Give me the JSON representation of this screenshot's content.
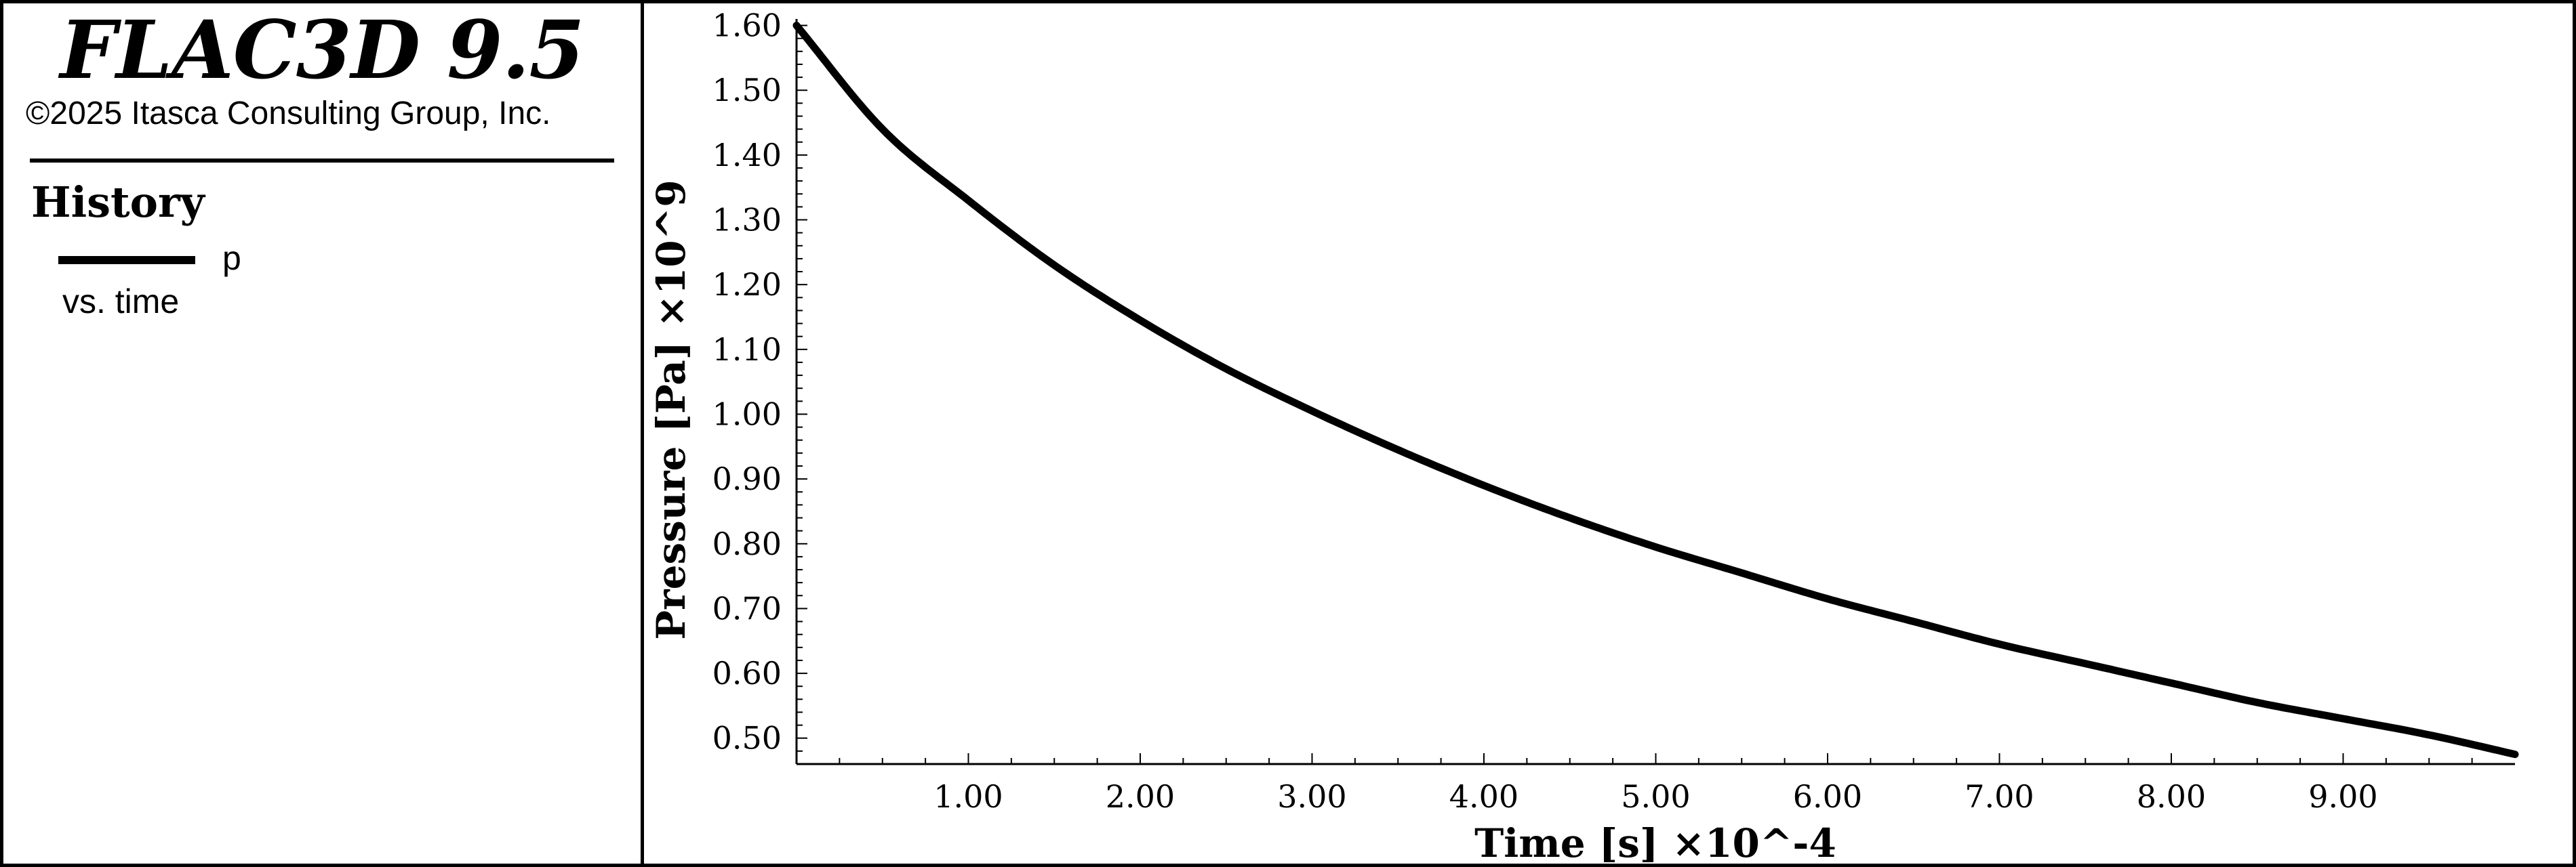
{
  "header": {
    "app_title": "FLAC3D 9.5",
    "copyright": "©2025 Itasca Consulting Group, Inc."
  },
  "legend": {
    "heading": "History",
    "series_label": "p",
    "sub_label": "vs. time"
  },
  "chart_data": {
    "type": "line",
    "title": "",
    "xlabel": "Time [s] ×10^-4",
    "ylabel": "Pressure [Pa] ×10^9",
    "xlim": [
      0.0,
      10.0
    ],
    "ylim": [
      0.46,
      1.61
    ],
    "x_ticks": [
      "1.00",
      "2.00",
      "3.00",
      "4.00",
      "5.00",
      "6.00",
      "7.00",
      "8.00",
      "9.00"
    ],
    "y_ticks": [
      "1.60",
      "1.50",
      "1.40",
      "1.30",
      "1.20",
      "1.10",
      "1.00",
      "0.90",
      "0.80",
      "0.70",
      "0.60",
      "0.50"
    ],
    "grid": false,
    "legend_position": "left-panel",
    "series": [
      {
        "name": "p",
        "color": "#000000",
        "x": [
          0.0,
          0.5,
          1.0,
          1.5,
          2.0,
          2.5,
          3.0,
          3.5,
          4.0,
          4.5,
          5.0,
          5.5,
          6.0,
          6.5,
          7.0,
          7.5,
          8.0,
          8.5,
          9.0,
          9.5,
          10.0
        ],
        "y": [
          1.6,
          1.44,
          1.33,
          1.23,
          1.145,
          1.07,
          1.005,
          0.945,
          0.89,
          0.84,
          0.795,
          0.755,
          0.715,
          0.68,
          0.645,
          0.615,
          0.585,
          0.555,
          0.53,
          0.505,
          0.475
        ]
      }
    ]
  }
}
